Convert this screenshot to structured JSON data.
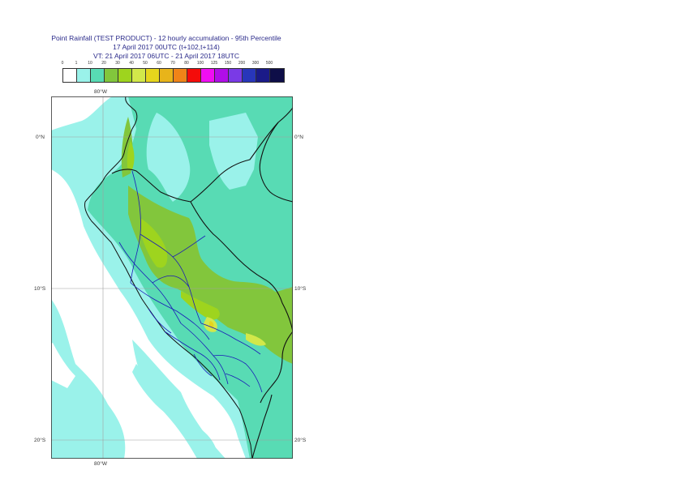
{
  "title": {
    "line1": "Point Rainfall (TEST PRODUCT) - 12 hourly accumulation - 95th Percentile",
    "line2": "17 April 2017 00UTC (t+102,t+114)",
    "line3": "VT: 21 April 2017 06UTC - 21 April 2017 18UTC"
  },
  "legend": {
    "labels": [
      "0",
      "1",
      "10",
      "20",
      "30",
      "40",
      "50",
      "60",
      "70",
      "80",
      "100",
      "125",
      "150",
      "200",
      "300",
      "500"
    ],
    "colors": [
      "#ffffff",
      "#9af2ea",
      "#58dbb4",
      "#82c63c",
      "#9ed41e",
      "#d2e84a",
      "#e6d51c",
      "#e8b41a",
      "#f08418",
      "#f40c0a",
      "#f00ef2",
      "#b00ee8",
      "#7a3ae6",
      "#2836ba",
      "#1a1a88",
      "#0e0e48"
    ]
  },
  "map": {
    "lon_labels": {
      "top": "80°W",
      "bottom": "80°W"
    },
    "lat_labels": {
      "left": [
        "0°N",
        "10°S",
        "20°S"
      ],
      "right": [
        "0°N",
        "10°S",
        "20°S"
      ]
    }
  }
}
